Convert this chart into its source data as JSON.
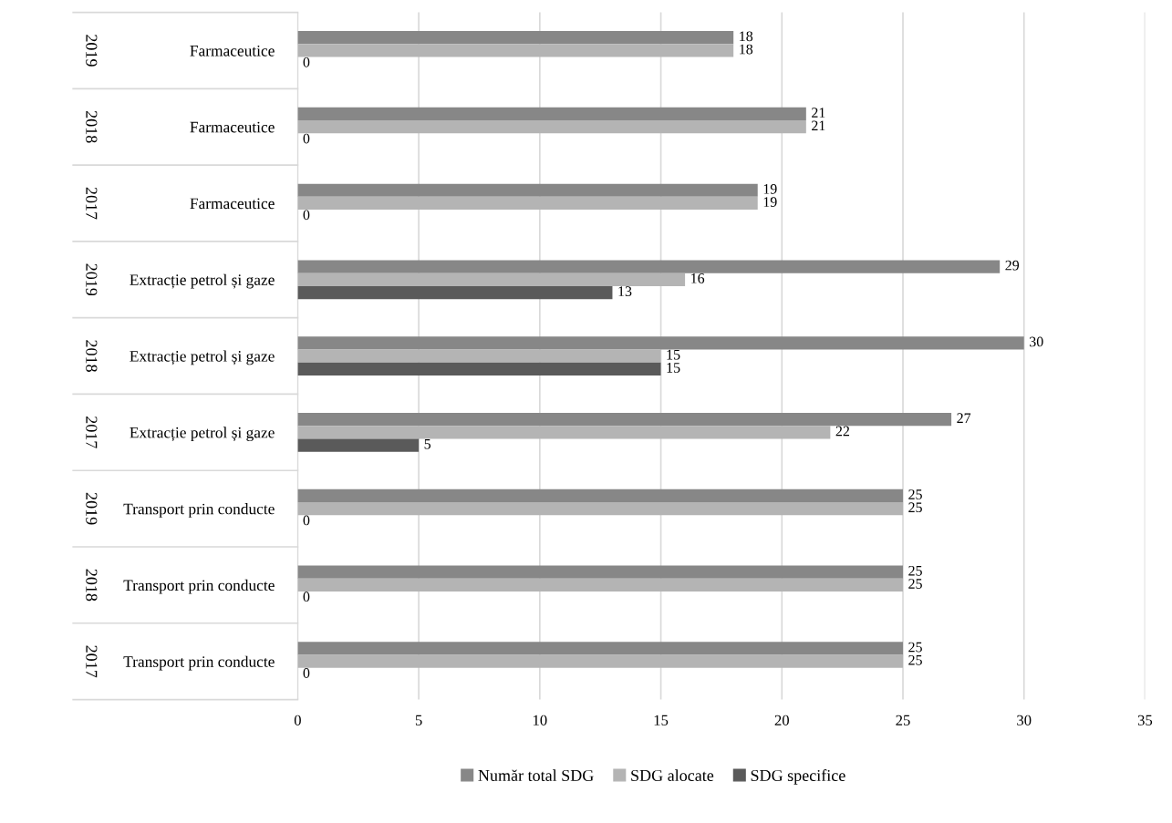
{
  "chart_data": {
    "type": "bar",
    "orientation": "horizontal",
    "categories": [
      "Farmaceutice",
      "Farmaceutice",
      "Farmaceutice",
      "Extracție petrol și gaze",
      "Extracție petrol și gaze",
      "Extracție petrol și gaze",
      "Transport prin conducte",
      "Transport prin conducte",
      "Transport prin conducte"
    ],
    "annotations": [
      "2019",
      "2018",
      "2017",
      "2019",
      "2018",
      "2017",
      "2019",
      "2018",
      "2017"
    ],
    "series": [
      {
        "name": "Număr total SDG",
        "color": "#878787",
        "values": [
          18,
          21,
          19,
          29,
          30,
          27,
          25,
          25,
          25
        ]
      },
      {
        "name": "SDG alocate",
        "color": "#b4b4b4",
        "values": [
          18,
          21,
          19,
          16,
          15,
          22,
          25,
          25,
          25
        ]
      },
      {
        "name": "SDG specifice",
        "color": "#5a5a5a",
        "values": [
          0,
          0,
          0,
          13,
          15,
          5,
          0,
          0,
          0
        ]
      }
    ],
    "xlim": [
      0,
      35
    ],
    "xticks": [
      0,
      5,
      10,
      15,
      20,
      25,
      30,
      35
    ],
    "grid": "x",
    "legend": "bottom",
    "data_labels": true
  }
}
